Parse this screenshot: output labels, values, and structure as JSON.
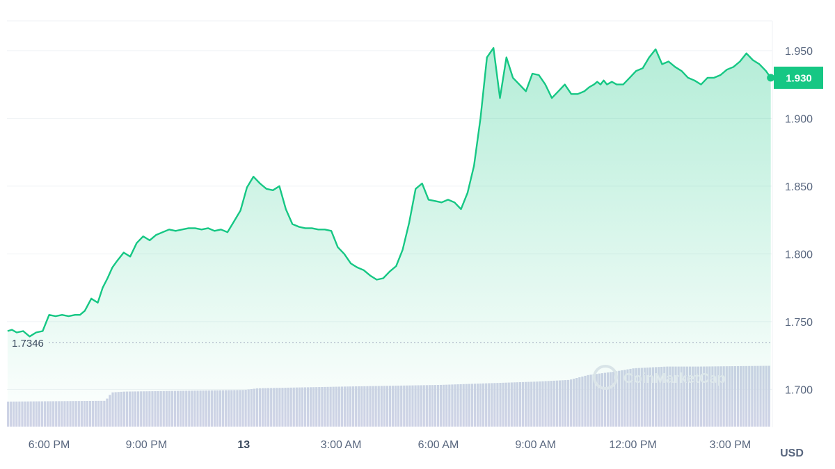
{
  "chart_data": {
    "type": "area",
    "currency": "USD",
    "ylim": [
      1.672,
      1.972
    ],
    "y_ticks": [
      "1.700",
      "1.750",
      "1.800",
      "1.850",
      "1.900",
      "1.950"
    ],
    "x_ticks": [
      {
        "label": "6:00 PM",
        "x": 18,
        "bold": false
      },
      {
        "label": "9:00 PM",
        "x": 21,
        "bold": false
      },
      {
        "label": "13",
        "x": 24,
        "bold": true
      },
      {
        "label": "3:00 AM",
        "x": 27,
        "bold": false
      },
      {
        "label": "6:00 AM",
        "x": 30,
        "bold": false
      },
      {
        "label": "9:00 AM",
        "x": 33,
        "bold": false
      },
      {
        "label": "12:00 PM",
        "x": 36,
        "bold": false
      },
      {
        "label": "3:00 PM",
        "x": 39,
        "bold": false
      }
    ],
    "x_range": [
      16.7,
      40.3
    ],
    "open_price": "1.7346",
    "last_price": "1.930",
    "watermark": "CoinMarketCap",
    "colors": {
      "line": "#16c784",
      "fill_top": "#16c784",
      "volume": "#cfd3e6",
      "grid": "#eff2f5",
      "tick_text": "#58667e"
    },
    "series": [
      {
        "x": [
          16.72,
          16.85,
          17.0,
          17.2,
          17.4,
          17.6,
          17.8,
          18.0,
          18.2,
          18.4,
          18.6,
          18.8,
          18.95,
          19.1,
          19.3,
          19.5,
          19.65,
          19.8,
          19.95,
          20.1,
          20.3,
          20.5,
          20.7,
          20.9,
          21.1,
          21.3,
          21.5,
          21.7,
          21.9,
          22.1,
          22.3,
          22.5,
          22.7,
          22.9,
          23.1,
          23.3,
          23.5,
          23.7,
          23.9,
          24.1,
          24.3,
          24.5,
          24.7,
          24.9,
          25.1,
          25.3,
          25.5,
          25.7,
          25.9,
          26.1,
          26.3,
          26.5,
          26.7,
          26.9,
          27.1,
          27.3,
          27.5,
          27.7,
          27.9,
          28.1,
          28.3,
          28.5,
          28.7,
          28.9,
          29.1,
          29.3,
          29.5,
          29.7,
          29.9,
          30.1,
          30.3,
          30.5,
          30.7,
          30.9,
          31.1,
          31.3,
          31.5,
          31.7,
          31.9,
          32.1,
          32.3,
          32.5,
          32.7,
          32.9,
          33.1,
          33.3,
          33.5,
          33.7,
          33.9,
          34.1,
          34.3,
          34.5,
          34.65,
          34.8,
          34.9,
          35.0,
          35.1,
          35.2,
          35.35,
          35.5,
          35.7,
          35.9,
          36.1,
          36.3,
          36.5,
          36.7,
          36.9,
          37.1,
          37.3,
          37.5,
          37.7,
          37.9,
          38.1,
          38.3,
          38.5,
          38.7,
          38.9,
          39.1,
          39.3,
          39.5,
          39.7,
          39.9,
          40.1,
          40.25
        ],
        "y": [
          1.743,
          1.744,
          1.742,
          1.743,
          1.739,
          1.742,
          1.743,
          1.755,
          1.754,
          1.755,
          1.754,
          1.755,
          1.755,
          1.758,
          1.767,
          1.764,
          1.775,
          1.782,
          1.79,
          1.795,
          1.801,
          1.798,
          1.808,
          1.813,
          1.81,
          1.814,
          1.816,
          1.818,
          1.817,
          1.818,
          1.819,
          1.819,
          1.818,
          1.819,
          1.817,
          1.818,
          1.816,
          1.824,
          1.832,
          1.849,
          1.857,
          1.852,
          1.848,
          1.847,
          1.85,
          1.833,
          1.822,
          1.82,
          1.819,
          1.819,
          1.818,
          1.818,
          1.817,
          1.805,
          1.8,
          1.793,
          1.79,
          1.788,
          1.784,
          1.781,
          1.782,
          1.787,
          1.791,
          1.803,
          1.823,
          1.848,
          1.852,
          1.84,
          1.839,
          1.838,
          1.84,
          1.838,
          1.833,
          1.845,
          1.865,
          1.9,
          1.945,
          1.952,
          1.915,
          1.945,
          1.93,
          1.925,
          1.92,
          1.933,
          1.932,
          1.925,
          1.915,
          1.92,
          1.925,
          1.918,
          1.918,
          1.92,
          1.923,
          1.925,
          1.927,
          1.925,
          1.928,
          1.925,
          1.927,
          1.925,
          1.925,
          1.93,
          1.935,
          1.937,
          1.945,
          1.951,
          1.94,
          1.942,
          1.938,
          1.935,
          1.93,
          1.928,
          1.925,
          1.93,
          1.93,
          1.932,
          1.936,
          1.938,
          1.942,
          1.948,
          1.943,
          1.94,
          1.935,
          1.93
        ]
      }
    ],
    "volume": {
      "x": [
        16.7,
        19.7,
        19.9,
        20.3,
        24.0,
        24.4,
        27.0,
        30.0,
        33.0,
        34.0,
        34.6,
        35.4,
        36.0,
        37.0,
        38.0,
        40.25
      ],
      "level": [
        0.3,
        0.31,
        0.41,
        0.42,
        0.44,
        0.46,
        0.48,
        0.5,
        0.54,
        0.56,
        0.62,
        0.66,
        0.7,
        0.72,
        0.72,
        0.73
      ]
    }
  }
}
